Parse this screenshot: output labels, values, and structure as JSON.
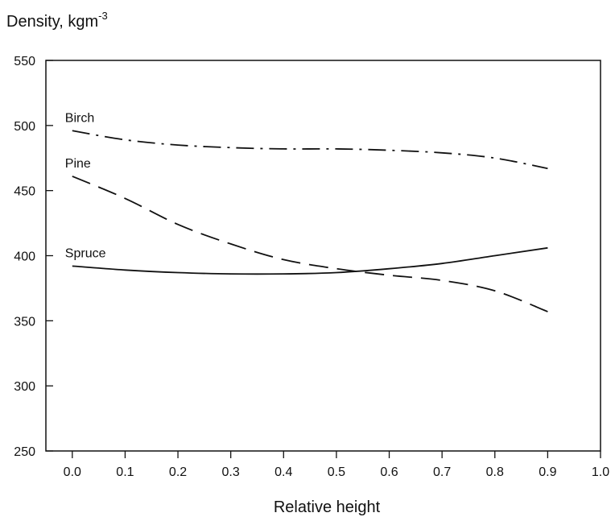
{
  "chart_data": {
    "type": "line",
    "title": "",
    "ylabel": "Density, kgm",
    "ylabel_superscript": "-3",
    "xlabel": "Relative height",
    "xlim": [
      -0.05,
      1.0
    ],
    "ylim": [
      250,
      550
    ],
    "x_ticks": [
      0.0,
      0.1,
      0.2,
      0.3,
      0.4,
      0.5,
      0.6,
      0.7,
      0.8,
      0.9,
      1.0
    ],
    "x_tick_labels": [
      "0.0",
      "0.1",
      "0.2",
      "0.3",
      "0.4",
      "0.5",
      "0.6",
      "0.7",
      "0.8",
      "0.9",
      "1.0"
    ],
    "y_ticks": [
      250,
      300,
      350,
      400,
      450,
      500,
      550
    ],
    "y_tick_labels": [
      "250",
      "300",
      "350",
      "400",
      "450",
      "500",
      "550"
    ],
    "grid": false,
    "legend": "none (series labeled directly on plot)",
    "series": [
      {
        "name": "Birch",
        "style": "dash-dot",
        "x": [
          0.0,
          0.1,
          0.2,
          0.3,
          0.4,
          0.5,
          0.6,
          0.7,
          0.8,
          0.9
        ],
        "values": [
          496,
          489,
          485,
          483,
          482,
          482,
          481,
          479,
          475,
          467
        ]
      },
      {
        "name": "Pine",
        "style": "dashed",
        "x": [
          0.0,
          0.1,
          0.2,
          0.3,
          0.4,
          0.5,
          0.6,
          0.7,
          0.8,
          0.9
        ],
        "values": [
          461,
          444,
          424,
          409,
          397,
          390,
          385,
          381,
          373,
          357
        ]
      },
      {
        "name": "Spruce",
        "style": "solid",
        "x": [
          0.0,
          0.1,
          0.2,
          0.3,
          0.4,
          0.5,
          0.6,
          0.7,
          0.8,
          0.9
        ],
        "values": [
          392,
          389,
          387,
          386,
          386,
          387,
          390,
          394,
          400,
          406
        ]
      }
    ]
  }
}
